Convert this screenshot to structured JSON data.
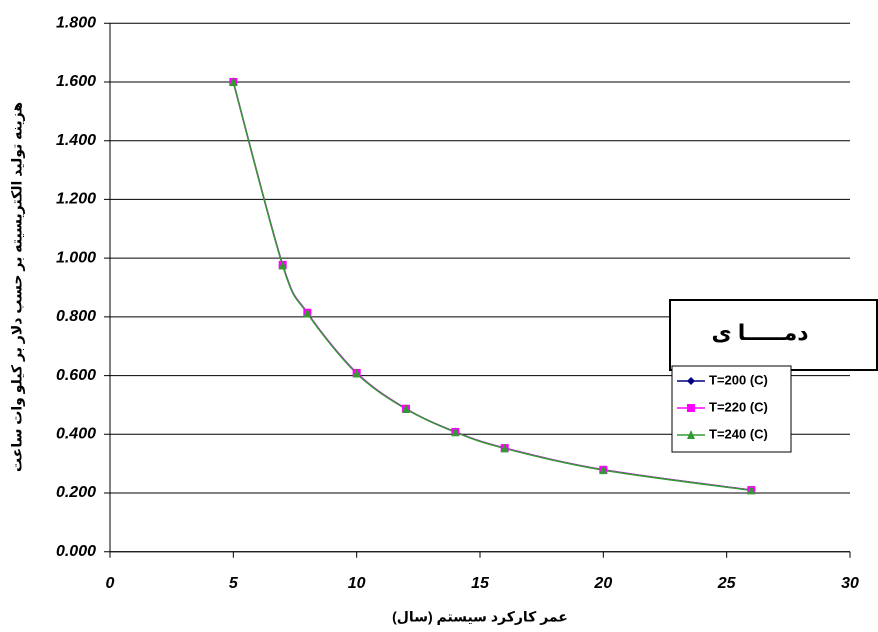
{
  "chart_data": {
    "type": "line",
    "x_label": "عمر کارکرد سیستم (سال)",
    "y_label": "هزینه تولید الکتریسیته بر حسب دلار بر کیلو وات ساعت",
    "legend_title": "دمـــــا ی",
    "x": [
      5,
      7,
      8,
      10,
      12,
      14,
      16,
      20,
      26
    ],
    "series": [
      {
        "name": "T=200 (C)",
        "color": "#000080",
        "marker": "diamond",
        "values": [
          1.6,
          0.977,
          0.814,
          0.609,
          0.487,
          0.408,
          0.353,
          0.279,
          0.21
        ]
      },
      {
        "name": "T=220 (C)",
        "color": "#ff00ff",
        "marker": "square",
        "values": [
          1.6,
          0.977,
          0.814,
          0.609,
          0.487,
          0.408,
          0.353,
          0.279,
          0.21
        ]
      },
      {
        "name": "T=240 (C)",
        "color": "#339933",
        "marker": "triangle",
        "values": [
          1.6,
          0.975,
          0.812,
          0.607,
          0.486,
          0.407,
          0.352,
          0.278,
          0.209
        ]
      }
    ],
    "xlim": [
      0,
      30
    ],
    "xticks": [
      0,
      5,
      10,
      15,
      20,
      25,
      30
    ],
    "ylim": [
      0,
      1.8
    ],
    "yticks": [
      {
        "value": 0,
        "label": "0.000"
      },
      {
        "value": 0.2,
        "label": "0.200"
      },
      {
        "value": 0.4,
        "label": "0.400"
      },
      {
        "value": 0.6,
        "label": "0.600"
      },
      {
        "value": 0.8,
        "label": "0.800"
      },
      {
        "value": 1.0,
        "label": "1.000"
      },
      {
        "value": 1.2,
        "label": "1.200"
      },
      {
        "value": 1.4,
        "label": "1.400"
      },
      {
        "value": 1.6,
        "label": "1.600"
      },
      {
        "value": 1.8,
        "label": "1.800"
      }
    ],
    "grid": true
  }
}
